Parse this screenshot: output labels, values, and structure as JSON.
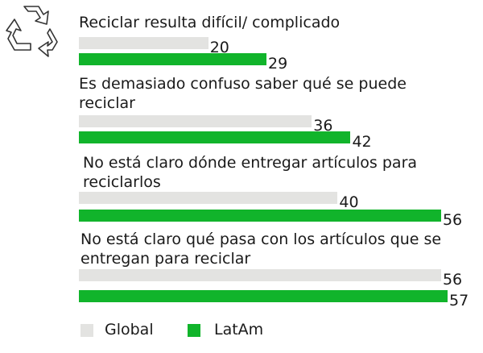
{
  "chart_data": {
    "type": "bar",
    "orientation": "horizontal",
    "categories": [
      "Reciclar resulta difícil/ complicado",
      "Es demasiado confuso saber qué se puede reciclar",
      "No está claro dónde entregar artículos para reciclarlos",
      "No está claro qué pasa con los artículos que se entregan para reciclar"
    ],
    "series": [
      {
        "name": "Global",
        "values": [
          20,
          36,
          40,
          56
        ],
        "color": "#e3e3e1"
      },
      {
        "name": "LatAm",
        "values": [
          29,
          42,
          56,
          57
        ],
        "color": "#11b42b"
      }
    ],
    "xlim": [
      0,
      57
    ],
    "grid": false,
    "legend": "bottom-left",
    "icon": "recycle-icon"
  }
}
